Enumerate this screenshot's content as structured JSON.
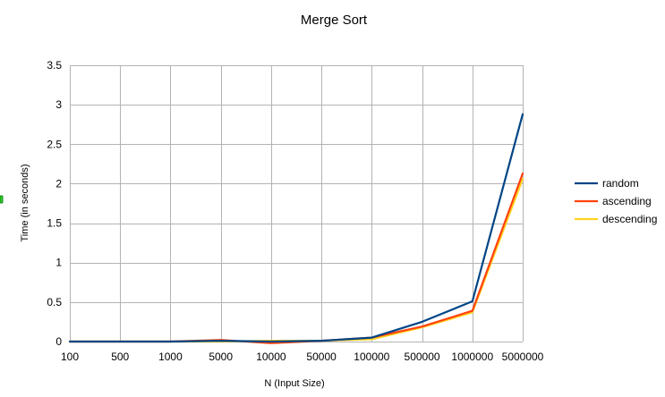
{
  "chart_data": {
    "type": "line",
    "title": "Merge Sort",
    "xlabel": "N (Input Size)",
    "ylabel": "Time (in seconds)",
    "categories": [
      "100",
      "500",
      "1000",
      "5000",
      "10000",
      "50000",
      "100000",
      "500000",
      "1000000",
      "5000000"
    ],
    "ylim": [
      0,
      3.5
    ],
    "yticks": [
      "0",
      "0.5",
      "1",
      "1.5",
      "2",
      "2.5",
      "3",
      "3.5"
    ],
    "grid": true,
    "legend_position": "right",
    "series": [
      {
        "name": "random",
        "color": "#004586",
        "values": [
          0,
          0,
          0,
          0.01,
          0,
          0.01,
          0.05,
          0.25,
          0.51,
          2.88
        ]
      },
      {
        "name": "ascending",
        "color": "#ff420e",
        "values": [
          0,
          0,
          0,
          0.02,
          -0.02,
          0.01,
          0.05,
          0.19,
          0.39,
          2.13
        ]
      },
      {
        "name": "descending",
        "color": "#ffd320",
        "values": [
          0,
          0,
          0,
          0,
          0.01,
          0.01,
          0.03,
          0.18,
          0.37,
          2.06
        ]
      }
    ]
  }
}
